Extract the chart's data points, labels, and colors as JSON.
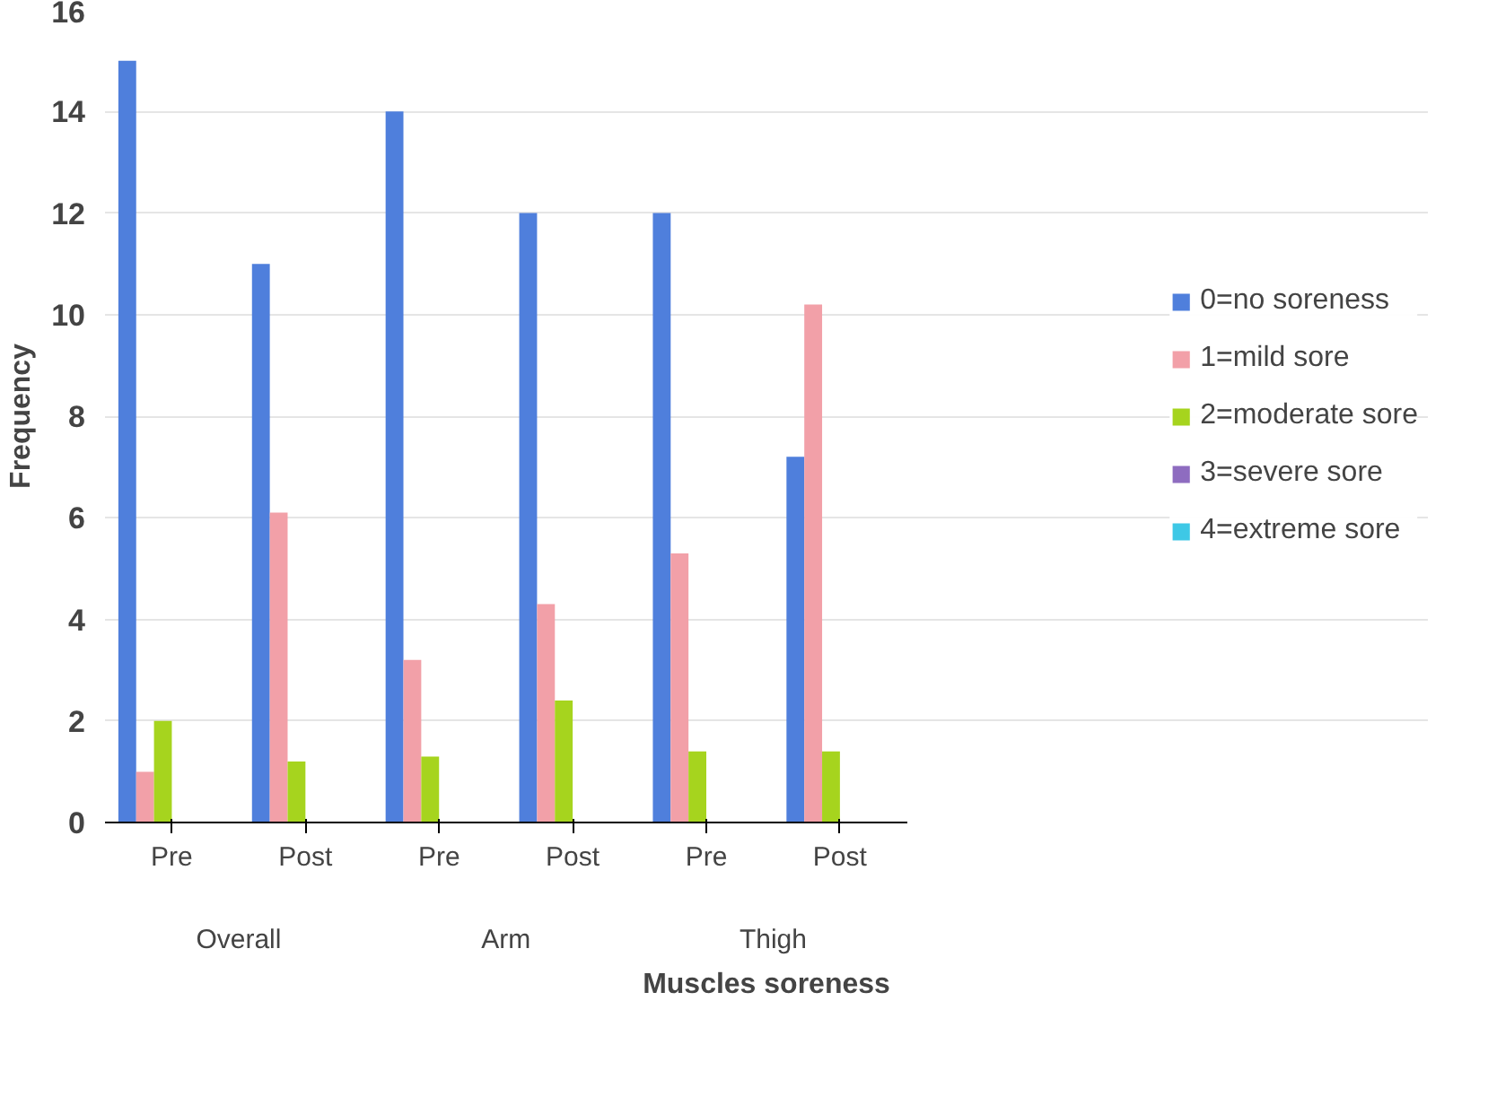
{
  "chart_data": {
    "type": "bar",
    "xlabel": "Muscles soreness",
    "ylabel": "Frequency",
    "categories": [
      "Pre",
      "Post",
      "Pre",
      "Post",
      "Pre",
      "Post"
    ],
    "annotations": [
      "Overall",
      "Arm",
      "Thigh"
    ],
    "series": [
      {
        "name": "0=no soreness",
        "color": "#4f7fdc",
        "values": [
          15,
          11,
          14,
          12,
          12,
          7.2
        ]
      },
      {
        "name": "1=mild sore",
        "color": "#f2a0a8",
        "values": [
          1,
          6.1,
          3.2,
          4.3,
          5.3,
          10.2
        ]
      },
      {
        "name": "2=moderate sore",
        "color": "#a6d41e",
        "values": [
          2,
          1.2,
          1.3,
          2.4,
          1.4,
          1.4
        ]
      },
      {
        "name": "3=severe sore",
        "color": "#8e6cc0",
        "values": [
          0,
          0,
          0,
          0,
          0,
          0
        ]
      },
      {
        "name": "4=extreme sore",
        "color": "#3ec8e6",
        "values": [
          0,
          0,
          0,
          0,
          0,
          0
        ]
      }
    ],
    "ylim": [
      0,
      16
    ],
    "yticks": [
      0,
      2,
      4,
      6,
      8,
      10,
      12,
      14,
      16
    ],
    "grid": "y",
    "legend": "right"
  }
}
